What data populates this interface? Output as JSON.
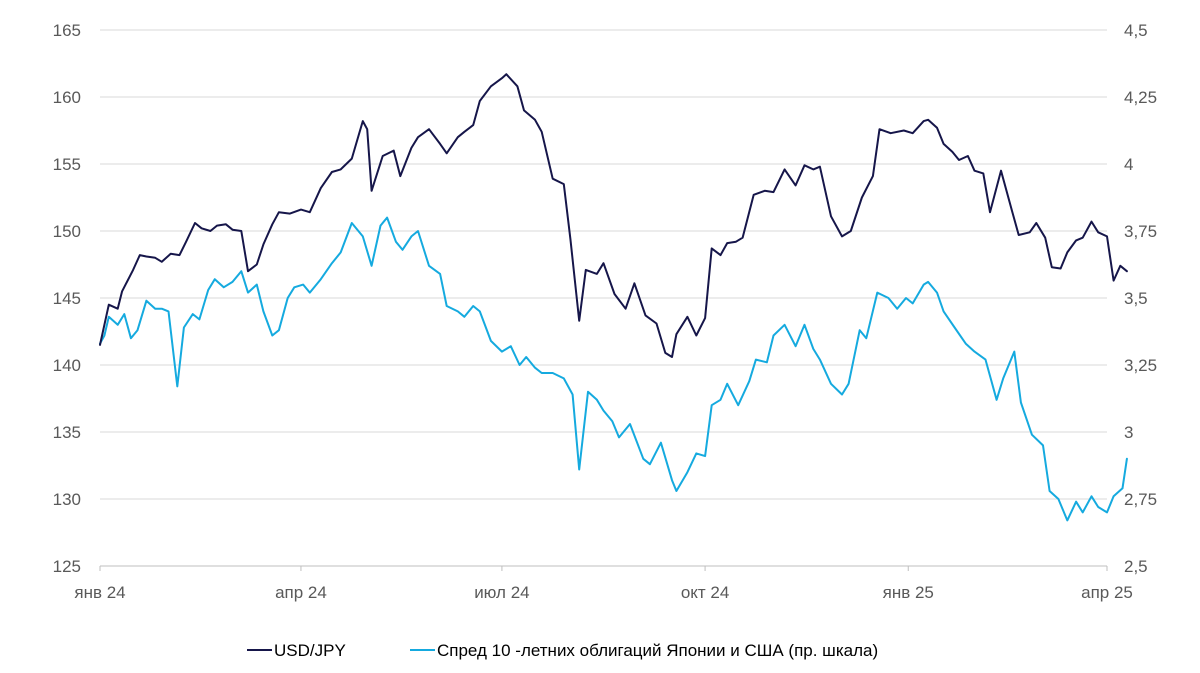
{
  "chart_data": {
    "type": "line",
    "title": "",
    "xlabel": "",
    "ylabel": "",
    "x_tick_labels": [
      "янв 24",
      "апр 24",
      "июл 24",
      "окт 24",
      "янв 25",
      "апр 25"
    ],
    "x_tick_dates": [
      "2024-01-01",
      "2024-04-01",
      "2024-07-01",
      "2024-10-01",
      "2025-01-01",
      "2025-04-01"
    ],
    "xlim": [
      "2024-01-01",
      "2025-04-01"
    ],
    "y_left": {
      "ylim": [
        125,
        165
      ],
      "ticks": [
        "125",
        "130",
        "135",
        "140",
        "145",
        "150",
        "155",
        "160",
        "165"
      ]
    },
    "y_right": {
      "ylim": [
        2.5,
        4.5
      ],
      "ticks": [
        "2,5",
        "2,75",
        "3",
        "3,25",
        "3,5",
        "3,75",
        "4",
        "4,25",
        "4,5"
      ]
    },
    "grid": "horizontal",
    "legend_position": "bottom",
    "series": [
      {
        "name": "USD/JPY",
        "axis": "left",
        "color": "#16164a",
        "points": [
          [
            "2024-01-01",
            141.5
          ],
          [
            "2024-01-05",
            144.5
          ],
          [
            "2024-01-09",
            144.2
          ],
          [
            "2024-01-11",
            145.5
          ],
          [
            "2024-01-16",
            147.1
          ],
          [
            "2024-01-19",
            148.2
          ],
          [
            "2024-01-22",
            148.1
          ],
          [
            "2024-01-26",
            148.0
          ],
          [
            "2024-01-29",
            147.7
          ],
          [
            "2024-02-02",
            148.3
          ],
          [
            "2024-02-06",
            148.2
          ],
          [
            "2024-02-09",
            149.2
          ],
          [
            "2024-02-13",
            150.6
          ],
          [
            "2024-02-16",
            150.2
          ],
          [
            "2024-02-20",
            150.0
          ],
          [
            "2024-02-23",
            150.4
          ],
          [
            "2024-02-27",
            150.5
          ],
          [
            "2024-03-01",
            150.1
          ],
          [
            "2024-03-05",
            150.0
          ],
          [
            "2024-03-08",
            147.0
          ],
          [
            "2024-03-12",
            147.5
          ],
          [
            "2024-03-15",
            149.0
          ],
          [
            "2024-03-19",
            150.5
          ],
          [
            "2024-03-22",
            151.4
          ],
          [
            "2024-03-27",
            151.3
          ],
          [
            "2024-04-01",
            151.6
          ],
          [
            "2024-04-05",
            151.4
          ],
          [
            "2024-04-10",
            153.2
          ],
          [
            "2024-04-15",
            154.4
          ],
          [
            "2024-04-19",
            154.6
          ],
          [
            "2024-04-24",
            155.4
          ],
          [
            "2024-04-29",
            158.2
          ],
          [
            "2024-05-01",
            157.6
          ],
          [
            "2024-05-03",
            153.0
          ],
          [
            "2024-05-08",
            155.6
          ],
          [
            "2024-05-13",
            156.0
          ],
          [
            "2024-05-16",
            154.1
          ],
          [
            "2024-05-21",
            156.2
          ],
          [
            "2024-05-24",
            157.0
          ],
          [
            "2024-05-29",
            157.6
          ],
          [
            "2024-06-03",
            156.5
          ],
          [
            "2024-06-06",
            155.8
          ],
          [
            "2024-06-11",
            157.0
          ],
          [
            "2024-06-14",
            157.4
          ],
          [
            "2024-06-18",
            157.9
          ],
          [
            "2024-06-21",
            159.7
          ],
          [
            "2024-06-26",
            160.8
          ],
          [
            "2024-07-01",
            161.4
          ],
          [
            "2024-07-03",
            161.7
          ],
          [
            "2024-07-08",
            160.8
          ],
          [
            "2024-07-11",
            159.0
          ],
          [
            "2024-07-16",
            158.3
          ],
          [
            "2024-07-19",
            157.4
          ],
          [
            "2024-07-24",
            153.9
          ],
          [
            "2024-07-29",
            153.5
          ],
          [
            "2024-08-01",
            149.4
          ],
          [
            "2024-08-05",
            143.3
          ],
          [
            "2024-08-08",
            147.1
          ],
          [
            "2024-08-13",
            146.8
          ],
          [
            "2024-08-16",
            147.6
          ],
          [
            "2024-08-21",
            145.3
          ],
          [
            "2024-08-26",
            144.2
          ],
          [
            "2024-08-30",
            146.1
          ],
          [
            "2024-09-04",
            143.7
          ],
          [
            "2024-09-09",
            143.1
          ],
          [
            "2024-09-13",
            140.9
          ],
          [
            "2024-09-16",
            140.6
          ],
          [
            "2024-09-18",
            142.3
          ],
          [
            "2024-09-23",
            143.6
          ],
          [
            "2024-09-27",
            142.2
          ],
          [
            "2024-10-01",
            143.5
          ],
          [
            "2024-10-04",
            148.7
          ],
          [
            "2024-10-08",
            148.2
          ],
          [
            "2024-10-11",
            149.1
          ],
          [
            "2024-10-15",
            149.2
          ],
          [
            "2024-10-18",
            149.5
          ],
          [
            "2024-10-23",
            152.7
          ],
          [
            "2024-10-28",
            153.0
          ],
          [
            "2024-11-01",
            152.9
          ],
          [
            "2024-11-06",
            154.6
          ],
          [
            "2024-11-11",
            153.4
          ],
          [
            "2024-11-15",
            154.9
          ],
          [
            "2024-11-19",
            154.6
          ],
          [
            "2024-11-22",
            154.8
          ],
          [
            "2024-11-27",
            151.1
          ],
          [
            "2024-12-02",
            149.6
          ],
          [
            "2024-12-06",
            150.0
          ],
          [
            "2024-12-11",
            152.5
          ],
          [
            "2024-12-16",
            154.1
          ],
          [
            "2024-12-19",
            157.6
          ],
          [
            "2024-12-24",
            157.3
          ],
          [
            "2024-12-30",
            157.5
          ],
          [
            "2025-01-03",
            157.3
          ],
          [
            "2025-01-08",
            158.2
          ],
          [
            "2025-01-10",
            158.3
          ],
          [
            "2025-01-14",
            157.7
          ],
          [
            "2025-01-17",
            156.5
          ],
          [
            "2025-01-21",
            155.9
          ],
          [
            "2025-01-24",
            155.3
          ],
          [
            "2025-01-28",
            155.6
          ],
          [
            "2025-01-31",
            154.5
          ],
          [
            "2025-02-04",
            154.3
          ],
          [
            "2025-02-07",
            151.4
          ],
          [
            "2025-02-12",
            154.5
          ],
          [
            "2025-02-17",
            151.5
          ],
          [
            "2025-02-20",
            149.7
          ],
          [
            "2025-02-25",
            149.9
          ],
          [
            "2025-02-28",
            150.6
          ],
          [
            "2025-03-04",
            149.5
          ],
          [
            "2025-03-07",
            147.3
          ],
          [
            "2025-03-11",
            147.2
          ],
          [
            "2025-03-14",
            148.4
          ],
          [
            "2025-03-18",
            149.3
          ],
          [
            "2025-03-21",
            149.5
          ],
          [
            "2025-03-25",
            150.7
          ],
          [
            "2025-03-28",
            149.9
          ],
          [
            "2025-04-01",
            149.6
          ],
          [
            "2025-04-04",
            146.3
          ],
          [
            "2025-04-07",
            147.4
          ],
          [
            "2025-04-10",
            147.0
          ]
        ]
      },
      {
        "name": "Спред 10 -летних облигаций Японии и США (пр. шкала)",
        "axis": "right",
        "color": "#15aadf",
        "points": [
          [
            "2024-01-01",
            3.33
          ],
          [
            "2024-01-03",
            3.36
          ],
          [
            "2024-01-05",
            3.43
          ],
          [
            "2024-01-09",
            3.4
          ],
          [
            "2024-01-12",
            3.44
          ],
          [
            "2024-01-15",
            3.35
          ],
          [
            "2024-01-18",
            3.38
          ],
          [
            "2024-01-22",
            3.49
          ],
          [
            "2024-01-26",
            3.46
          ],
          [
            "2024-01-29",
            3.46
          ],
          [
            "2024-02-01",
            3.45
          ],
          [
            "2024-02-05",
            3.17
          ],
          [
            "2024-02-08",
            3.39
          ],
          [
            "2024-02-12",
            3.44
          ],
          [
            "2024-02-15",
            3.42
          ],
          [
            "2024-02-19",
            3.53
          ],
          [
            "2024-02-22",
            3.57
          ],
          [
            "2024-02-26",
            3.54
          ],
          [
            "2024-03-01",
            3.56
          ],
          [
            "2024-03-05",
            3.6
          ],
          [
            "2024-03-08",
            3.52
          ],
          [
            "2024-03-12",
            3.55
          ],
          [
            "2024-03-15",
            3.45
          ],
          [
            "2024-03-19",
            3.36
          ],
          [
            "2024-03-22",
            3.38
          ],
          [
            "2024-03-26",
            3.5
          ],
          [
            "2024-03-29",
            3.54
          ],
          [
            "2024-04-02",
            3.55
          ],
          [
            "2024-04-05",
            3.52
          ],
          [
            "2024-04-10",
            3.57
          ],
          [
            "2024-04-15",
            3.63
          ],
          [
            "2024-04-19",
            3.67
          ],
          [
            "2024-04-24",
            3.78
          ],
          [
            "2024-04-29",
            3.73
          ],
          [
            "2024-05-03",
            3.62
          ],
          [
            "2024-05-07",
            3.77
          ],
          [
            "2024-05-10",
            3.8
          ],
          [
            "2024-05-14",
            3.71
          ],
          [
            "2024-05-17",
            3.68
          ],
          [
            "2024-05-21",
            3.73
          ],
          [
            "2024-05-24",
            3.75
          ],
          [
            "2024-05-29",
            3.62
          ],
          [
            "2024-06-03",
            3.59
          ],
          [
            "2024-06-06",
            3.47
          ],
          [
            "2024-06-11",
            3.45
          ],
          [
            "2024-06-14",
            3.43
          ],
          [
            "2024-06-18",
            3.47
          ],
          [
            "2024-06-21",
            3.45
          ],
          [
            "2024-06-26",
            3.34
          ],
          [
            "2024-07-01",
            3.3
          ],
          [
            "2024-07-05",
            3.32
          ],
          [
            "2024-07-09",
            3.25
          ],
          [
            "2024-07-12",
            3.28
          ],
          [
            "2024-07-16",
            3.24
          ],
          [
            "2024-07-19",
            3.22
          ],
          [
            "2024-07-24",
            3.22
          ],
          [
            "2024-07-29",
            3.2
          ],
          [
            "2024-08-02",
            3.14
          ],
          [
            "2024-08-05",
            2.86
          ],
          [
            "2024-08-09",
            3.15
          ],
          [
            "2024-08-13",
            3.12
          ],
          [
            "2024-08-16",
            3.08
          ],
          [
            "2024-08-20",
            3.04
          ],
          [
            "2024-08-23",
            2.98
          ],
          [
            "2024-08-28",
            3.03
          ],
          [
            "2024-09-03",
            2.9
          ],
          [
            "2024-09-06",
            2.88
          ],
          [
            "2024-09-11",
            2.96
          ],
          [
            "2024-09-16",
            2.82
          ],
          [
            "2024-09-18",
            2.78
          ],
          [
            "2024-09-23",
            2.85
          ],
          [
            "2024-09-27",
            2.92
          ],
          [
            "2024-10-01",
            2.91
          ],
          [
            "2024-10-04",
            3.1
          ],
          [
            "2024-10-08",
            3.12
          ],
          [
            "2024-10-11",
            3.18
          ],
          [
            "2024-10-16",
            3.1
          ],
          [
            "2024-10-21",
            3.19
          ],
          [
            "2024-10-24",
            3.27
          ],
          [
            "2024-10-29",
            3.26
          ],
          [
            "2024-11-01",
            3.36
          ],
          [
            "2024-11-06",
            3.4
          ],
          [
            "2024-11-11",
            3.32
          ],
          [
            "2024-11-15",
            3.4
          ],
          [
            "2024-11-19",
            3.31
          ],
          [
            "2024-11-22",
            3.27
          ],
          [
            "2024-11-27",
            3.18
          ],
          [
            "2024-12-02",
            3.14
          ],
          [
            "2024-12-05",
            3.18
          ],
          [
            "2024-12-10",
            3.38
          ],
          [
            "2024-12-13",
            3.35
          ],
          [
            "2024-12-18",
            3.52
          ],
          [
            "2024-12-23",
            3.5
          ],
          [
            "2024-12-27",
            3.46
          ],
          [
            "2024-12-31",
            3.5
          ],
          [
            "2025-01-03",
            3.48
          ],
          [
            "2025-01-08",
            3.55
          ],
          [
            "2025-01-10",
            3.56
          ],
          [
            "2025-01-14",
            3.52
          ],
          [
            "2025-01-17",
            3.45
          ],
          [
            "2025-01-22",
            3.39
          ],
          [
            "2025-01-27",
            3.33
          ],
          [
            "2025-01-31",
            3.3
          ],
          [
            "2025-02-05",
            3.27
          ],
          [
            "2025-02-10",
            3.12
          ],
          [
            "2025-02-13",
            3.2
          ],
          [
            "2025-02-18",
            3.3
          ],
          [
            "2025-02-21",
            3.11
          ],
          [
            "2025-02-26",
            2.99
          ],
          [
            "2025-03-03",
            2.95
          ],
          [
            "2025-03-06",
            2.78
          ],
          [
            "2025-03-10",
            2.75
          ],
          [
            "2025-03-14",
            2.67
          ],
          [
            "2025-03-18",
            2.74
          ],
          [
            "2025-03-21",
            2.7
          ],
          [
            "2025-03-25",
            2.76
          ],
          [
            "2025-03-28",
            2.72
          ],
          [
            "2025-04-01",
            2.7
          ],
          [
            "2025-04-04",
            2.76
          ],
          [
            "2025-04-08",
            2.79
          ],
          [
            "2025-04-10",
            2.9
          ]
        ]
      }
    ]
  }
}
